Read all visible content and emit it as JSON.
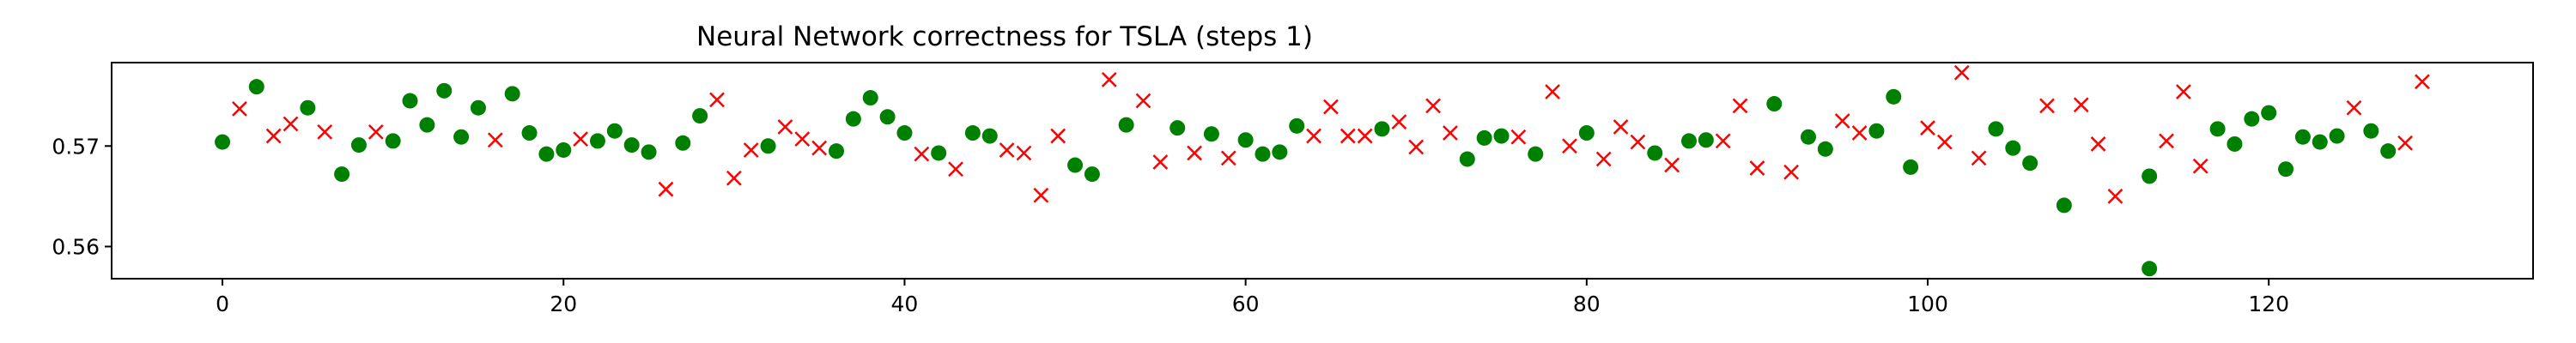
{
  "chart_data": {
    "type": "scatter",
    "title": "Neural Network correctness for TSLA (steps 1)",
    "xlabel": "",
    "ylabel": "",
    "xlim": [
      -6.5,
      135.5
    ],
    "ylim": [
      0.5568,
      0.5783
    ],
    "xticks": [
      0,
      20,
      40,
      60,
      80,
      100,
      120
    ],
    "yticks": [
      0.56,
      0.57
    ],
    "ytick_labels": [
      "0.56",
      "0.57"
    ],
    "grid": false,
    "legend": "none",
    "colors": {
      "correct": "#008000",
      "incorrect": "#ff0000"
    },
    "series": [
      {
        "marker": "circle",
        "color": "#008000",
        "points": [
          [
            0,
            0.5704
          ],
          [
            2,
            0.5759
          ],
          [
            5,
            0.5738
          ],
          [
            7,
            0.5672
          ],
          [
            8,
            0.5701
          ],
          [
            10,
            0.5705
          ],
          [
            11,
            0.5745
          ],
          [
            12,
            0.5721
          ],
          [
            13,
            0.5755
          ],
          [
            14,
            0.5709
          ],
          [
            15,
            0.5738
          ],
          [
            17,
            0.5752
          ],
          [
            18,
            0.5713
          ],
          [
            19,
            0.5692
          ],
          [
            20,
            0.5696
          ],
          [
            22,
            0.5705
          ],
          [
            23,
            0.5715
          ],
          [
            24,
            0.5701
          ],
          [
            25,
            0.5694
          ],
          [
            27,
            0.5703
          ],
          [
            28,
            0.573
          ],
          [
            32,
            0.57
          ],
          [
            36,
            0.5695
          ],
          [
            37,
            0.5727
          ],
          [
            38,
            0.5748
          ],
          [
            39,
            0.5729
          ],
          [
            40,
            0.5713
          ],
          [
            42,
            0.5693
          ],
          [
            44,
            0.5713
          ],
          [
            45,
            0.571
          ],
          [
            50,
            0.5681
          ],
          [
            51,
            0.5672
          ],
          [
            53,
            0.5721
          ],
          [
            56,
            0.5718
          ],
          [
            58,
            0.5712
          ],
          [
            60,
            0.5706
          ],
          [
            61,
            0.5692
          ],
          [
            62,
            0.5694
          ],
          [
            63,
            0.572
          ],
          [
            68,
            0.5717
          ],
          [
            73,
            0.5687
          ],
          [
            74,
            0.5708
          ],
          [
            75,
            0.571
          ],
          [
            77,
            0.5692
          ],
          [
            80,
            0.5713
          ],
          [
            84,
            0.5693
          ],
          [
            86,
            0.5705
          ],
          [
            87,
            0.5706
          ],
          [
            91,
            0.5742
          ],
          [
            93,
            0.5709
          ],
          [
            94,
            0.5697
          ],
          [
            97,
            0.5715
          ],
          [
            98,
            0.5749
          ],
          [
            99,
            0.5679
          ],
          [
            104,
            0.5717
          ],
          [
            105,
            0.5698
          ],
          [
            106,
            0.5683
          ],
          [
            108,
            0.5641
          ],
          [
            113,
            0.567
          ],
          [
            113,
            0.5578
          ],
          [
            117,
            0.5717
          ],
          [
            118,
            0.5702
          ],
          [
            119,
            0.5727
          ],
          [
            120,
            0.5733
          ],
          [
            121,
            0.5677
          ],
          [
            122,
            0.5709
          ],
          [
            123,
            0.5704
          ],
          [
            124,
            0.571
          ],
          [
            126,
            0.5715
          ],
          [
            127,
            0.5695
          ]
        ]
      },
      {
        "marker": "x",
        "color": "#ff0000",
        "points": [
          [
            1,
            0.5737
          ],
          [
            3,
            0.571
          ],
          [
            4,
            0.5722
          ],
          [
            6,
            0.5714
          ],
          [
            9,
            0.5714
          ],
          [
            16,
            0.5706
          ],
          [
            21,
            0.5707
          ],
          [
            26,
            0.5657
          ],
          [
            29,
            0.5746
          ],
          [
            30,
            0.5668
          ],
          [
            31,
            0.5696
          ],
          [
            33,
            0.5719
          ],
          [
            34,
            0.5707
          ],
          [
            35,
            0.5698
          ],
          [
            41,
            0.5692
          ],
          [
            43,
            0.5677
          ],
          [
            46,
            0.5696
          ],
          [
            47,
            0.5693
          ],
          [
            48,
            0.5651
          ],
          [
            49,
            0.571
          ],
          [
            52,
            0.5766
          ],
          [
            54,
            0.5745
          ],
          [
            55,
            0.5684
          ],
          [
            57,
            0.5693
          ],
          [
            59,
            0.5688
          ],
          [
            64,
            0.571
          ],
          [
            65,
            0.5739
          ],
          [
            66,
            0.571
          ],
          [
            67,
            0.571
          ],
          [
            69,
            0.5724
          ],
          [
            70,
            0.5699
          ],
          [
            71,
            0.574
          ],
          [
            72,
            0.5713
          ],
          [
            76,
            0.5709
          ],
          [
            78,
            0.5754
          ],
          [
            79,
            0.57
          ],
          [
            81,
            0.5687
          ],
          [
            82,
            0.5719
          ],
          [
            83,
            0.5704
          ],
          [
            85,
            0.5681
          ],
          [
            88,
            0.5705
          ],
          [
            89,
            0.574
          ],
          [
            90,
            0.5678
          ],
          [
            92,
            0.5674
          ],
          [
            95,
            0.5725
          ],
          [
            96,
            0.5713
          ],
          [
            100,
            0.5718
          ],
          [
            101,
            0.5704
          ],
          [
            102,
            0.5773
          ],
          [
            103,
            0.5688
          ],
          [
            107,
            0.574
          ],
          [
            109,
            0.5741
          ],
          [
            110,
            0.5702
          ],
          [
            111,
            0.565
          ],
          [
            114,
            0.5705
          ],
          [
            115,
            0.5754
          ],
          [
            116,
            0.568
          ],
          [
            125,
            0.5738
          ],
          [
            128,
            0.5703
          ],
          [
            129,
            0.5764
          ]
        ]
      }
    ]
  }
}
